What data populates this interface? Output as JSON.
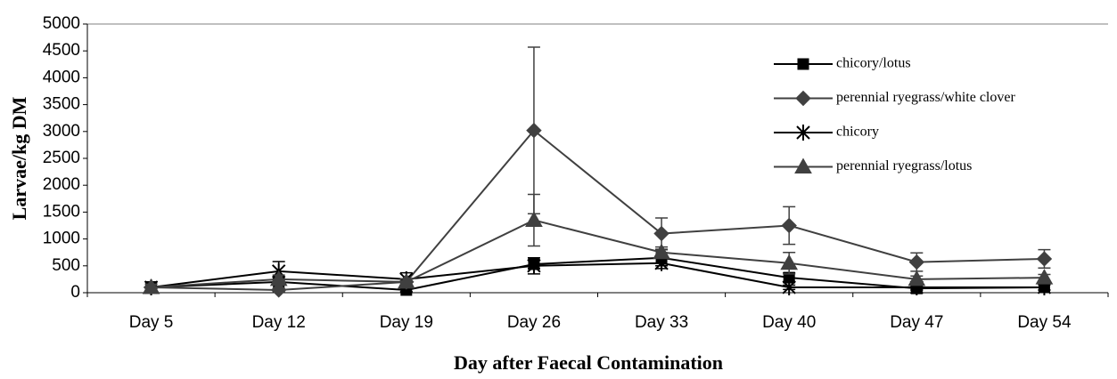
{
  "chart_data": {
    "type": "line",
    "x_label": "Day after Faecal Contamination",
    "y_label": "Larvae/kg DM",
    "categories": [
      "Day 5",
      "Day 12",
      "Day 19",
      "Day 26",
      "Day 33",
      "Day 40",
      "Day 47",
      "Day 54"
    ],
    "ylim": [
      0,
      5000
    ],
    "yticks": [
      0,
      500,
      1000,
      1500,
      2000,
      2500,
      3000,
      3500,
      4000,
      4500,
      5000
    ],
    "series": [
      {
        "name": "chicory/lotus",
        "color": "#000000",
        "marker": "square",
        "values": [
          100,
          200,
          50,
          530,
          650,
          280,
          80,
          100
        ],
        "errors": [
          100,
          60,
          30,
          80,
          150,
          90,
          40,
          50
        ]
      },
      {
        "name": "perennial ryegrass/white clover",
        "color": "#404040",
        "marker": "diamond",
        "values": [
          100,
          50,
          200,
          3020,
          1100,
          1250,
          570,
          630
        ],
        "errors": [
          60,
          30,
          60,
          1550,
          290,
          350,
          170,
          170
        ]
      },
      {
        "name": "chicory",
        "color": "#000000",
        "marker": "star",
        "values": [
          100,
          400,
          250,
          500,
          550,
          100,
          100,
          100
        ],
        "errors": [
          100,
          180,
          120,
          150,
          100,
          40,
          40,
          50
        ]
      },
      {
        "name": "perennial ryegrass/lotus",
        "color": "#404040",
        "marker": "triangle",
        "values": [
          100,
          250,
          200,
          1350,
          750,
          550,
          250,
          280
        ],
        "errors": [
          60,
          80,
          60,
          480,
          100,
          200,
          60,
          60
        ]
      }
    ]
  }
}
